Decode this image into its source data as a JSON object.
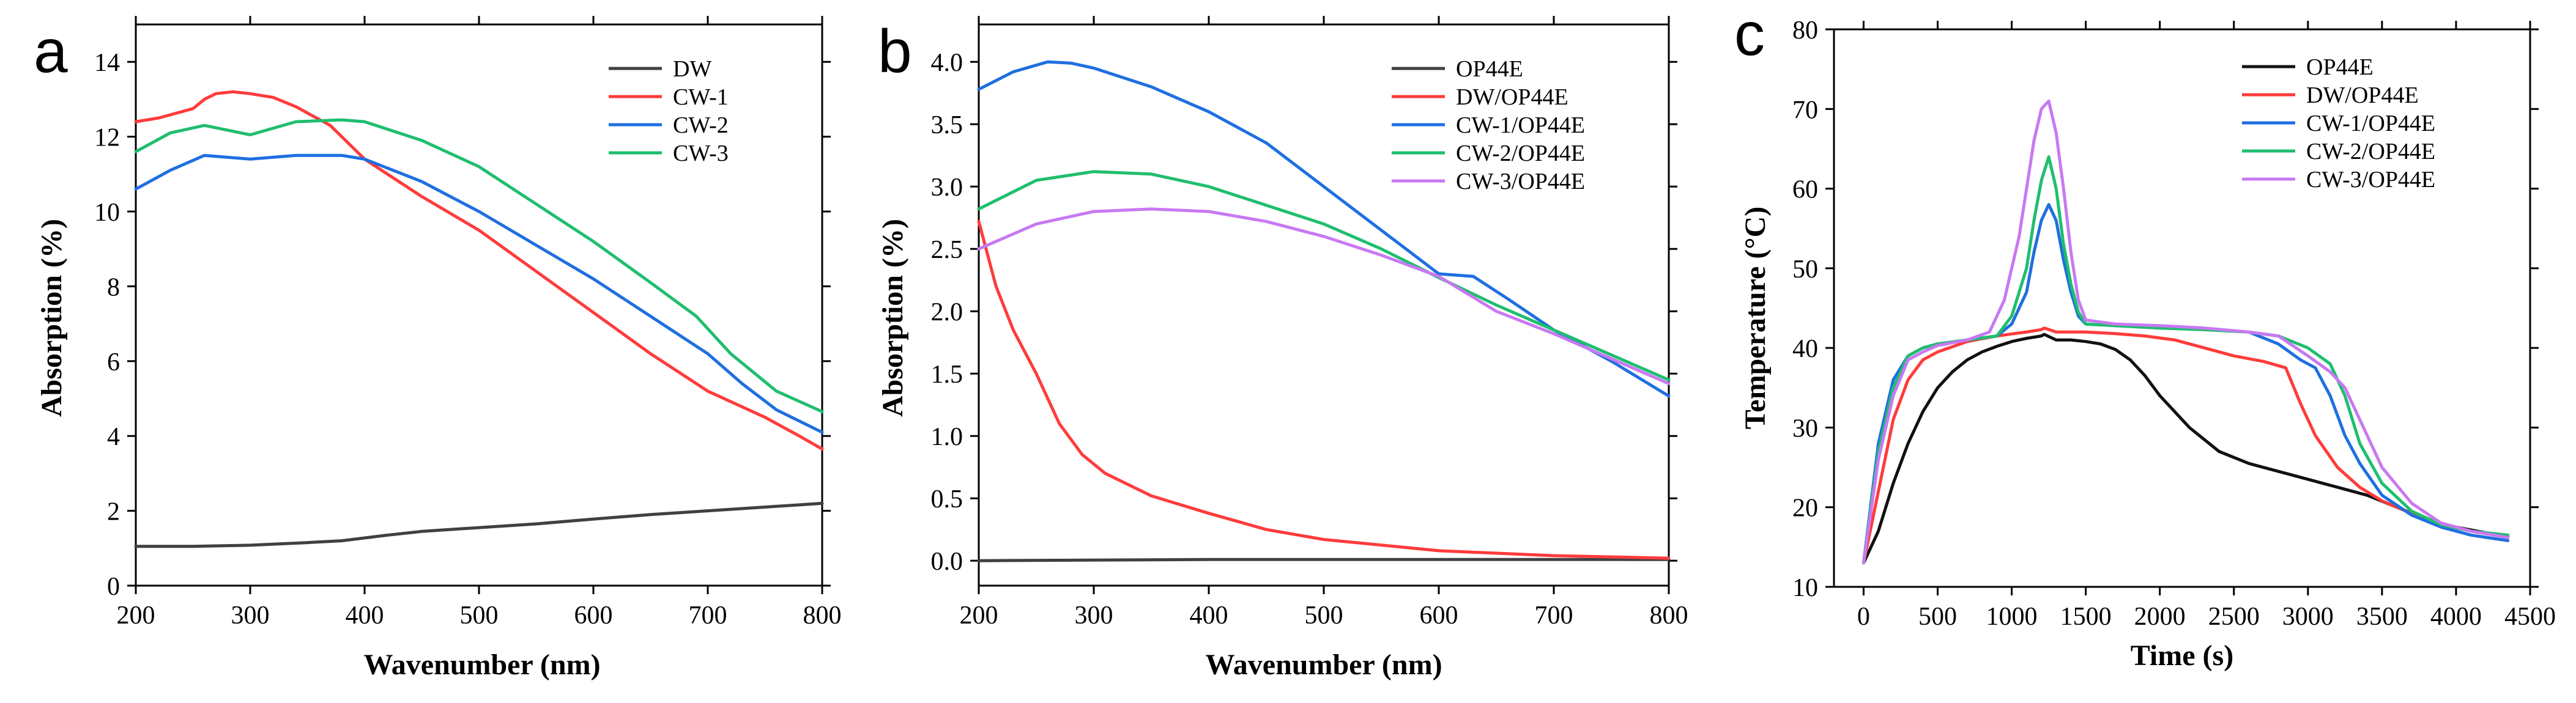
{
  "chart_data": [
    {
      "type": "line",
      "panel": "a",
      "title": "",
      "xlabel": "Wavenumber (nm)",
      "ylabel": "Absorption (%)",
      "xlim": [
        200,
        800
      ],
      "ylim": [
        0,
        15
      ],
      "xticks": [
        200,
        300,
        400,
        500,
        600,
        700,
        800
      ],
      "yticks": [
        0,
        2,
        4,
        6,
        8,
        10,
        12,
        14
      ],
      "legend_position": "top-right",
      "series": [
        {
          "name": "DW",
          "color": "#404040",
          "x": [
            200,
            250,
            300,
            350,
            380,
            420,
            450,
            500,
            550,
            600,
            650,
            700,
            750,
            800
          ],
          "y": [
            1.05,
            1.05,
            1.08,
            1.15,
            1.2,
            1.35,
            1.45,
            1.55,
            1.65,
            1.78,
            1.9,
            2.0,
            2.1,
            2.2
          ]
        },
        {
          "name": "CW-1",
          "color": "#ff3b3b",
          "x": [
            200,
            220,
            250,
            260,
            270,
            285,
            300,
            320,
            340,
            370,
            400,
            450,
            500,
            550,
            600,
            650,
            700,
            750,
            780,
            800
          ],
          "y": [
            12.4,
            12.5,
            12.75,
            13.0,
            13.15,
            13.2,
            13.15,
            13.05,
            12.8,
            12.3,
            11.4,
            10.4,
            9.5,
            8.4,
            7.3,
            6.2,
            5.2,
            4.5,
            4.0,
            3.65
          ]
        },
        {
          "name": "CW-2",
          "color": "#1f6fe0",
          "x": [
            200,
            230,
            260,
            300,
            340,
            380,
            400,
            450,
            500,
            550,
            600,
            650,
            700,
            730,
            760,
            800
          ],
          "y": [
            10.6,
            11.1,
            11.5,
            11.4,
            11.5,
            11.5,
            11.4,
            10.8,
            10.0,
            9.1,
            8.2,
            7.2,
            6.2,
            5.4,
            4.7,
            4.1
          ]
        },
        {
          "name": "CW-3",
          "color": "#1fbe6e",
          "x": [
            200,
            230,
            260,
            300,
            340,
            380,
            400,
            450,
            500,
            550,
            600,
            650,
            690,
            720,
            760,
            800
          ],
          "y": [
            11.6,
            12.1,
            12.3,
            12.05,
            12.4,
            12.45,
            12.4,
            11.9,
            11.2,
            10.2,
            9.2,
            8.1,
            7.2,
            6.2,
            5.2,
            4.65
          ]
        }
      ]
    },
    {
      "type": "line",
      "panel": "b",
      "title": "",
      "xlabel": "Wavenumber (nm)",
      "ylabel": "Absorption (%)",
      "xlim": [
        200,
        800
      ],
      "ylim": [
        -0.2,
        4.3
      ],
      "xticks": [
        200,
        300,
        400,
        500,
        600,
        700,
        800
      ],
      "yticks": [
        0.0,
        0.5,
        1.0,
        1.5,
        2.0,
        2.5,
        3.0,
        3.5,
        4.0
      ],
      "ytick_labels": [
        "0.0",
        "0.5",
        "1.0",
        "1.5",
        "2.0",
        "2.5",
        "3.0",
        "3.5",
        "4.0"
      ],
      "legend_position": "top-right",
      "series": [
        {
          "name": "OP44E",
          "color": "#404040",
          "x": [
            200,
            400,
            600,
            800
          ],
          "y": [
            0.0,
            0.01,
            0.01,
            0.01
          ]
        },
        {
          "name": "DW/OP44E",
          "color": "#ff3b3b",
          "x": [
            200,
            215,
            230,
            250,
            270,
            290,
            310,
            350,
            400,
            450,
            500,
            600,
            700,
            800
          ],
          "y": [
            2.72,
            2.2,
            1.85,
            1.5,
            1.1,
            0.85,
            0.7,
            0.52,
            0.38,
            0.25,
            0.17,
            0.08,
            0.04,
            0.02
          ]
        },
        {
          "name": "CW-1/OP44E",
          "color": "#1f6fe0",
          "x": [
            200,
            230,
            260,
            280,
            300,
            350,
            400,
            450,
            500,
            550,
            600,
            630,
            660,
            700,
            750,
            800
          ],
          "y": [
            3.78,
            3.92,
            4.0,
            3.99,
            3.95,
            3.8,
            3.6,
            3.35,
            3.0,
            2.65,
            2.3,
            2.28,
            2.1,
            1.85,
            1.6,
            1.32
          ]
        },
        {
          "name": "CW-2/OP44E",
          "color": "#1fbe6e",
          "x": [
            200,
            250,
            300,
            350,
            400,
            450,
            500,
            550,
            600,
            650,
            700,
            750,
            800
          ],
          "y": [
            2.82,
            3.05,
            3.12,
            3.1,
            3.0,
            2.85,
            2.7,
            2.5,
            2.27,
            2.05,
            1.85,
            1.65,
            1.45
          ]
        },
        {
          "name": "CW-3/OP44E",
          "color": "#c879f2",
          "x": [
            200,
            250,
            300,
            350,
            400,
            450,
            500,
            550,
            600,
            650,
            700,
            750,
            800
          ],
          "y": [
            2.5,
            2.7,
            2.8,
            2.82,
            2.8,
            2.72,
            2.6,
            2.45,
            2.28,
            2.0,
            1.82,
            1.62,
            1.42
          ]
        }
      ]
    },
    {
      "type": "line",
      "panel": "c",
      "title": "",
      "xlabel": "Time (s)",
      "ylabel": "Temperature (°C)",
      "xlim": [
        -200,
        4500
      ],
      "ylim": [
        10,
        80
      ],
      "xticks": [
        0,
        500,
        1000,
        1500,
        2000,
        2500,
        3000,
        3500,
        4000,
        4500
      ],
      "yticks": [
        10,
        20,
        30,
        40,
        50,
        60,
        70,
        80
      ],
      "legend_position": "top-right",
      "series": [
        {
          "name": "OP44E",
          "color": "#111111",
          "x": [
            0,
            100,
            200,
            300,
            400,
            500,
            600,
            700,
            800,
            900,
            1000,
            1100,
            1200,
            1220,
            1300,
            1400,
            1500,
            1600,
            1700,
            1800,
            1900,
            2000,
            2200,
            2400,
            2600,
            2800,
            3000,
            3200,
            3400,
            3600,
            3800,
            4000,
            4200,
            4350
          ],
          "y": [
            13,
            17,
            23,
            28,
            32,
            35,
            37,
            38.5,
            39.5,
            40.2,
            40.8,
            41.2,
            41.5,
            41.7,
            41.0,
            41.0,
            40.8,
            40.5,
            39.8,
            38.5,
            36.5,
            34,
            30,
            27,
            25.5,
            24.5,
            23.5,
            22.5,
            21.5,
            20,
            18.5,
            17.5,
            16.8,
            16.3
          ]
        },
        {
          "name": "DW/OP44E",
          "color": "#ff3b3b",
          "x": [
            0,
            100,
            200,
            300,
            400,
            500,
            700,
            900,
            1100,
            1200,
            1220,
            1300,
            1500,
            1700,
            1900,
            2100,
            2300,
            2500,
            2700,
            2850,
            2950,
            3050,
            3200,
            3350,
            3500,
            3700,
            3900,
            4100,
            4350
          ],
          "y": [
            13,
            22,
            31,
            36,
            38.5,
            39.5,
            40.8,
            41.5,
            42,
            42.3,
            42.5,
            42,
            42,
            41.8,
            41.5,
            41,
            40,
            39,
            38.3,
            37.5,
            33,
            29,
            25,
            22.5,
            20.8,
            19.2,
            18,
            17,
            16.2
          ]
        },
        {
          "name": "CW-1/OP44E",
          "color": "#1f6fe0",
          "x": [
            0,
            100,
            200,
            300,
            400,
            500,
            700,
            900,
            1000,
            1100,
            1150,
            1200,
            1250,
            1300,
            1350,
            1400,
            1450,
            1500,
            1700,
            2000,
            2300,
            2600,
            2800,
            2950,
            3050,
            3150,
            3250,
            3350,
            3500,
            3700,
            3900,
            4100,
            4350
          ],
          "y": [
            13,
            28,
            36,
            39,
            40,
            40.5,
            41,
            41.5,
            43,
            47,
            52,
            56,
            58,
            56,
            51,
            47,
            44,
            43,
            42.8,
            42.5,
            42.3,
            42,
            40.5,
            38.5,
            37.5,
            34,
            29,
            25.5,
            21.5,
            19,
            17.5,
            16.5,
            15.8
          ]
        },
        {
          "name": "CW-2/OP44E",
          "color": "#1fbe6e",
          "x": [
            0,
            100,
            200,
            300,
            400,
            500,
            700,
            900,
            1000,
            1100,
            1150,
            1200,
            1250,
            1300,
            1350,
            1400,
            1450,
            1500,
            1700,
            2000,
            2300,
            2600,
            2800,
            3000,
            3150,
            3250,
            3350,
            3500,
            3700,
            3900,
            4100,
            4350
          ],
          "y": [
            13,
            27,
            35,
            39,
            40,
            40.5,
            41,
            41.5,
            44,
            50,
            56,
            61,
            64,
            60,
            53,
            48,
            44.5,
            43,
            42.8,
            42.5,
            42.3,
            42,
            41.5,
            40,
            38,
            34,
            28,
            23,
            19.5,
            17.8,
            17,
            16.5
          ]
        },
        {
          "name": "CW-3/OP44E",
          "color": "#c879f2",
          "x": [
            0,
            100,
            200,
            300,
            400,
            500,
            700,
            850,
            950,
            1050,
            1100,
            1150,
            1200,
            1250,
            1300,
            1350,
            1400,
            1450,
            1500,
            1700,
            2000,
            2300,
            2600,
            2800,
            3000,
            3150,
            3250,
            3350,
            3500,
            3700,
            3900,
            4100,
            4350
          ],
          "y": [
            13,
            26,
            34,
            38.5,
            39.5,
            40.3,
            41,
            42,
            46,
            54,
            60,
            66,
            70,
            71,
            67,
            60,
            52,
            46,
            43.5,
            43,
            42.8,
            42.5,
            42,
            41.5,
            39,
            37,
            35,
            31,
            25,
            20.5,
            18,
            17,
            16.2
          ]
        }
      ]
    }
  ],
  "panels": [
    {
      "letter": "a",
      "xlabel": "Wavenumber (nm)",
      "ylabel": "Absorption (%)"
    },
    {
      "letter": "b",
      "xlabel": "Wavenumber (nm)",
      "ylabel": "Absorption (%)"
    },
    {
      "letter": "c",
      "xlabel": "Time (s)",
      "ylabel": "Temperature (°C)"
    }
  ]
}
